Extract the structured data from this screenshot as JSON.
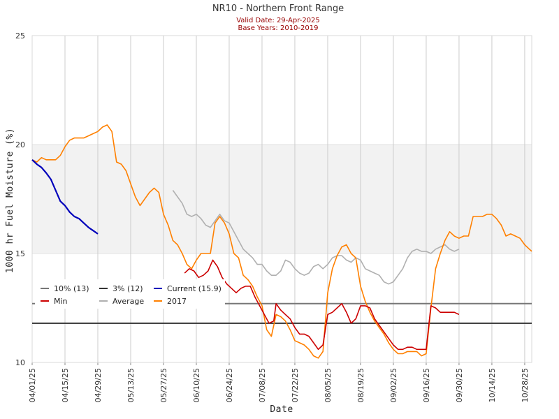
{
  "chart_data": {
    "type": "line",
    "title": "NR10 - Northern Front Range",
    "subtitle_1": "Valid Date: 29-Apr-2025",
    "subtitle_2": "Base Years: 2010-2019",
    "xlabel": "Date",
    "ylabel": "1000 hr Fuel Moisture (%)",
    "ylim": [
      10,
      25
    ],
    "yticks": [
      "10",
      "15",
      "20",
      "25"
    ],
    "xlim": [
      "04/01/25",
      "10/31/25"
    ],
    "xticks": [
      "04/01/25",
      "04/15/25",
      "04/29/25",
      "05/13/25",
      "05/27/25",
      "06/10/25",
      "06/24/25",
      "07/08/25",
      "07/22/25",
      "08/05/25",
      "08/19/25",
      "09/02/25",
      "09/16/25",
      "09/30/25",
      "10/14/25",
      "10/28/25"
    ],
    "shaded_band": [
      15,
      20
    ],
    "grid": "vertical",
    "legend_position": "center-left",
    "colors": {
      "pct10": "#777777",
      "pct3": "#333333",
      "current": "#0000bb",
      "min": "#cc0000",
      "average": "#b0b0b0",
      "year2017": "#ff8000",
      "band": "#f2f2f2",
      "grid": "#cccccc"
    },
    "legend": [
      {
        "key": "pct10",
        "label": "10% (13)"
      },
      {
        "key": "pct3",
        "label": "3% (12)"
      },
      {
        "key": "current",
        "label": "Current (15.9)"
      },
      {
        "key": "min",
        "label": "Min"
      },
      {
        "key": "average",
        "label": "Average"
      },
      {
        "key": "year2017",
        "label": "2017"
      }
    ],
    "series": [
      {
        "name": "10% (13)",
        "key": "pct10",
        "constant": 12.7
      },
      {
        "name": "3% (12)",
        "key": "pct3",
        "constant": 11.8
      },
      {
        "name": "Current (15.9)",
        "key": "current",
        "points": [
          [
            "04/01",
            19.3
          ],
          [
            "04/03",
            19.1
          ],
          [
            "04/05",
            18.95
          ],
          [
            "04/07",
            18.7
          ],
          [
            "04/09",
            18.4
          ],
          [
            "04/11",
            17.9
          ],
          [
            "04/13",
            17.4
          ],
          [
            "04/15",
            17.2
          ],
          [
            "04/17",
            16.9
          ],
          [
            "04/19",
            16.7
          ],
          [
            "04/21",
            16.6
          ],
          [
            "04/23",
            16.4
          ],
          [
            "04/25",
            16.2
          ],
          [
            "04/27",
            16.05
          ],
          [
            "04/29",
            15.9
          ]
        ]
      },
      {
        "name": "Min",
        "key": "min",
        "points": [
          [
            "06/05",
            14.1
          ],
          [
            "06/07",
            14.3
          ],
          [
            "06/09",
            14.2
          ],
          [
            "06/11",
            13.9
          ],
          [
            "06/13",
            14.0
          ],
          [
            "06/15",
            14.2
          ],
          [
            "06/17",
            14.7
          ],
          [
            "06/19",
            14.4
          ],
          [
            "06/21",
            13.9
          ],
          [
            "06/23",
            13.6
          ],
          [
            "06/25",
            13.4
          ],
          [
            "06/27",
            13.2
          ],
          [
            "06/29",
            13.4
          ],
          [
            "07/01",
            13.5
          ],
          [
            "07/03",
            13.5
          ],
          [
            "07/05",
            13.0
          ],
          [
            "07/07",
            12.6
          ],
          [
            "07/09",
            12.2
          ],
          [
            "07/11",
            11.8
          ],
          [
            "07/13",
            11.9
          ],
          [
            "07/14",
            12.7
          ],
          [
            "07/16",
            12.4
          ],
          [
            "07/18",
            12.2
          ],
          [
            "07/20",
            12.0
          ],
          [
            "07/22",
            11.6
          ],
          [
            "07/24",
            11.3
          ],
          [
            "07/26",
            11.3
          ],
          [
            "07/28",
            11.2
          ],
          [
            "07/30",
            10.9
          ],
          [
            "08/01",
            10.6
          ],
          [
            "08/03",
            10.8
          ],
          [
            "08/05",
            12.2
          ],
          [
            "08/07",
            12.3
          ],
          [
            "08/09",
            12.5
          ],
          [
            "08/11",
            12.7
          ],
          [
            "08/13",
            12.3
          ],
          [
            "08/15",
            11.8
          ],
          [
            "08/17",
            12.0
          ],
          [
            "08/19",
            12.6
          ],
          [
            "08/21",
            12.6
          ],
          [
            "08/23",
            12.5
          ],
          [
            "08/25",
            12.0
          ],
          [
            "08/27",
            11.7
          ],
          [
            "08/29",
            11.4
          ],
          [
            "08/31",
            11.1
          ],
          [
            "09/02",
            10.8
          ],
          [
            "09/04",
            10.6
          ],
          [
            "09/06",
            10.6
          ],
          [
            "09/08",
            10.7
          ],
          [
            "09/10",
            10.7
          ],
          [
            "09/12",
            10.6
          ],
          [
            "09/14",
            10.6
          ],
          [
            "09/16",
            10.6
          ],
          [
            "09/18",
            12.6
          ],
          [
            "09/20",
            12.5
          ],
          [
            "09/22",
            12.3
          ],
          [
            "09/24",
            12.3
          ],
          [
            "09/26",
            12.3
          ],
          [
            "09/28",
            12.3
          ],
          [
            "09/30",
            12.2
          ]
        ]
      },
      {
        "name": "Average",
        "key": "average",
        "points": [
          [
            "05/31",
            17.9
          ],
          [
            "06/02",
            17.6
          ],
          [
            "06/04",
            17.3
          ],
          [
            "06/06",
            16.8
          ],
          [
            "06/08",
            16.7
          ],
          [
            "06/10",
            16.8
          ],
          [
            "06/12",
            16.6
          ],
          [
            "06/14",
            16.3
          ],
          [
            "06/16",
            16.2
          ],
          [
            "06/18",
            16.5
          ],
          [
            "06/20",
            16.8
          ],
          [
            "06/22",
            16.5
          ],
          [
            "06/24",
            16.4
          ],
          [
            "06/26",
            16.0
          ],
          [
            "06/28",
            15.6
          ],
          [
            "06/30",
            15.2
          ],
          [
            "07/02",
            15.0
          ],
          [
            "07/04",
            14.8
          ],
          [
            "07/06",
            14.5
          ],
          [
            "07/08",
            14.5
          ],
          [
            "07/10",
            14.2
          ],
          [
            "07/12",
            14.0
          ],
          [
            "07/14",
            14.0
          ],
          [
            "07/16",
            14.2
          ],
          [
            "07/18",
            14.7
          ],
          [
            "07/20",
            14.6
          ],
          [
            "07/22",
            14.3
          ],
          [
            "07/24",
            14.1
          ],
          [
            "07/26",
            14.0
          ],
          [
            "07/28",
            14.1
          ],
          [
            "07/30",
            14.4
          ],
          [
            "08/01",
            14.5
          ],
          [
            "08/03",
            14.3
          ],
          [
            "08/05",
            14.5
          ],
          [
            "08/07",
            14.8
          ],
          [
            "08/09",
            14.9
          ],
          [
            "08/11",
            14.9
          ],
          [
            "08/13",
            14.7
          ],
          [
            "08/15",
            14.6
          ],
          [
            "08/17",
            14.8
          ],
          [
            "08/19",
            14.7
          ],
          [
            "08/21",
            14.3
          ],
          [
            "08/23",
            14.2
          ],
          [
            "08/25",
            14.1
          ],
          [
            "08/27",
            14.0
          ],
          [
            "08/29",
            13.7
          ],
          [
            "08/31",
            13.6
          ],
          [
            "09/02",
            13.7
          ],
          [
            "09/04",
            14.0
          ],
          [
            "09/06",
            14.3
          ],
          [
            "09/08",
            14.8
          ],
          [
            "09/10",
            15.1
          ],
          [
            "09/12",
            15.2
          ],
          [
            "09/14",
            15.1
          ],
          [
            "09/16",
            15.1
          ],
          [
            "09/18",
            15.0
          ],
          [
            "09/20",
            15.2
          ],
          [
            "09/22",
            15.3
          ],
          [
            "09/24",
            15.4
          ],
          [
            "09/26",
            15.2
          ],
          [
            "09/28",
            15.1
          ],
          [
            "09/30",
            15.2
          ]
        ]
      },
      {
        "name": "2017",
        "key": "year2017",
        "points": [
          [
            "04/01",
            19.3
          ],
          [
            "04/03",
            19.2
          ],
          [
            "04/05",
            19.4
          ],
          [
            "04/07",
            19.3
          ],
          [
            "04/09",
            19.3
          ],
          [
            "04/11",
            19.3
          ],
          [
            "04/13",
            19.5
          ],
          [
            "04/15",
            19.9
          ],
          [
            "04/17",
            20.2
          ],
          [
            "04/19",
            20.3
          ],
          [
            "04/21",
            20.3
          ],
          [
            "04/23",
            20.3
          ],
          [
            "04/25",
            20.4
          ],
          [
            "04/27",
            20.5
          ],
          [
            "04/29",
            20.6
          ],
          [
            "05/01",
            20.8
          ],
          [
            "05/03",
            20.9
          ],
          [
            "05/05",
            20.6
          ],
          [
            "05/07",
            19.2
          ],
          [
            "05/09",
            19.1
          ],
          [
            "05/11",
            18.8
          ],
          [
            "05/13",
            18.2
          ],
          [
            "05/15",
            17.6
          ],
          [
            "05/17",
            17.2
          ],
          [
            "05/19",
            17.5
          ],
          [
            "05/21",
            17.8
          ],
          [
            "05/23",
            18.0
          ],
          [
            "05/25",
            17.8
          ],
          [
            "05/27",
            16.8
          ],
          [
            "05/29",
            16.3
          ],
          [
            "05/31",
            15.6
          ],
          [
            "06/02",
            15.4
          ],
          [
            "06/04",
            15.0
          ],
          [
            "06/06",
            14.5
          ],
          [
            "06/08",
            14.3
          ],
          [
            "06/10",
            14.7
          ],
          [
            "06/12",
            15.0
          ],
          [
            "06/14",
            15.0
          ],
          [
            "06/16",
            15.0
          ],
          [
            "06/18",
            16.4
          ],
          [
            "06/20",
            16.7
          ],
          [
            "06/22",
            16.4
          ],
          [
            "06/24",
            15.9
          ],
          [
            "06/26",
            15.0
          ],
          [
            "06/28",
            14.8
          ],
          [
            "06/30",
            14.0
          ],
          [
            "07/02",
            13.8
          ],
          [
            "07/04",
            13.5
          ],
          [
            "07/06",
            13.0
          ],
          [
            "07/08",
            12.6
          ],
          [
            "07/10",
            11.5
          ],
          [
            "07/12",
            11.2
          ],
          [
            "07/14",
            12.2
          ],
          [
            "07/16",
            12.1
          ],
          [
            "07/18",
            11.9
          ],
          [
            "07/20",
            11.5
          ],
          [
            "07/22",
            11.0
          ],
          [
            "07/24",
            10.9
          ],
          [
            "07/26",
            10.8
          ],
          [
            "07/28",
            10.6
          ],
          [
            "07/30",
            10.3
          ],
          [
            "08/01",
            10.2
          ],
          [
            "08/03",
            10.5
          ],
          [
            "08/05",
            13.2
          ],
          [
            "08/07",
            14.3
          ],
          [
            "08/09",
            14.9
          ],
          [
            "08/11",
            15.3
          ],
          [
            "08/13",
            15.4
          ],
          [
            "08/15",
            15.0
          ],
          [
            "08/17",
            14.8
          ],
          [
            "08/19",
            13.5
          ],
          [
            "08/21",
            12.8
          ],
          [
            "08/23",
            12.3
          ],
          [
            "08/25",
            11.9
          ],
          [
            "08/27",
            11.6
          ],
          [
            "08/29",
            11.3
          ],
          [
            "08/31",
            10.9
          ],
          [
            "09/02",
            10.6
          ],
          [
            "09/04",
            10.4
          ],
          [
            "09/06",
            10.4
          ],
          [
            "09/08",
            10.5
          ],
          [
            "09/10",
            10.5
          ],
          [
            "09/12",
            10.5
          ],
          [
            "09/14",
            10.3
          ],
          [
            "09/16",
            10.4
          ],
          [
            "09/18",
            12.5
          ],
          [
            "09/20",
            14.3
          ],
          [
            "09/22",
            15.0
          ],
          [
            "09/24",
            15.6
          ],
          [
            "09/26",
            16.0
          ],
          [
            "09/28",
            15.8
          ],
          [
            "09/30",
            15.7
          ],
          [
            "10/02",
            15.8
          ],
          [
            "10/04",
            15.8
          ],
          [
            "10/06",
            16.7
          ],
          [
            "10/08",
            16.7
          ],
          [
            "10/10",
            16.7
          ],
          [
            "10/12",
            16.8
          ],
          [
            "10/14",
            16.8
          ],
          [
            "10/16",
            16.6
          ],
          [
            "10/18",
            16.3
          ],
          [
            "10/20",
            15.8
          ],
          [
            "10/22",
            15.9
          ],
          [
            "10/24",
            15.8
          ],
          [
            "10/26",
            15.7
          ],
          [
            "10/28",
            15.4
          ],
          [
            "10/30",
            15.2
          ],
          [
            "10/31",
            15.1
          ]
        ]
      }
    ]
  }
}
